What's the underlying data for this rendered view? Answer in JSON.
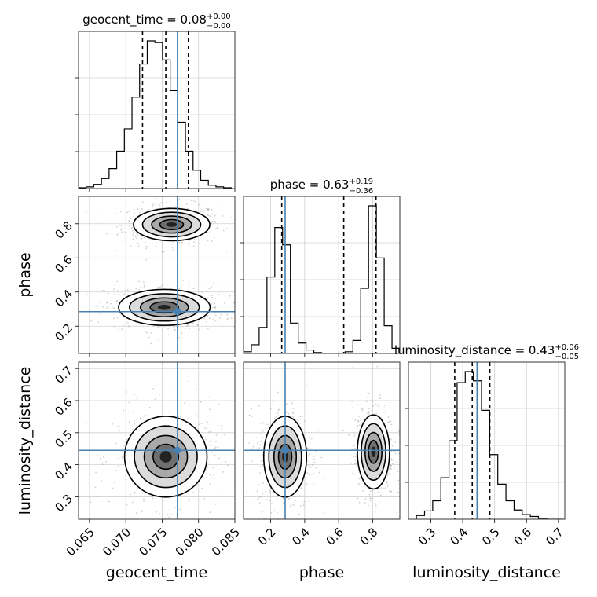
{
  "chart_data": {
    "type": "corner",
    "parameters": [
      "geocent_time",
      "phase",
      "luminosity_distance"
    ],
    "axis_labels": [
      "geocent_time",
      "phase",
      "luminosity_distance"
    ],
    "ranges": [
      [
        0.0635,
        0.085
      ],
      [
        0.04,
        0.96
      ],
      [
        0.23,
        0.72
      ]
    ],
    "ticks": {
      "geocent_time": {
        "values": [
          0.065,
          0.07,
          0.075,
          0.08,
          0.085
        ],
        "labels": [
          "0.065",
          "0.070",
          "0.075",
          "0.080",
          "0.085"
        ]
      },
      "phase": {
        "values": [
          0.2,
          0.4,
          0.6,
          0.8
        ],
        "labels": [
          "0.2",
          "0.4",
          "0.6",
          "0.8"
        ]
      },
      "luminosity_distance": {
        "values": [
          0.3,
          0.4,
          0.5,
          0.6,
          0.7
        ],
        "labels": [
          "0.3",
          "0.4",
          "0.5",
          "0.6",
          "0.7"
        ]
      }
    },
    "truths": {
      "geocent_time": 0.0771,
      "phase": 0.285,
      "luminosity_distance": 0.445
    },
    "truth_color": "#4682b4",
    "grid": true,
    "titles": [
      {
        "param": "geocent_time",
        "main": "geocent_time = 0.08",
        "sup": "+0.00",
        "sub": "−0.00"
      },
      {
        "param": "phase",
        "main": "phase = 0.63",
        "sup": "+0.19",
        "sub": "−0.36"
      },
      {
        "param": "luminosity_distance",
        "main": "luminosity_distance = 0.43",
        "sup": "+0.06",
        "sub": "−0.05"
      }
    ],
    "quantiles": {
      "geocent_time": [
        0.0723,
        0.0755,
        0.0786
      ],
      "phase": [
        0.265,
        0.63,
        0.82
      ],
      "luminosity_distance": [
        0.375,
        0.43,
        0.485
      ]
    },
    "histograms": {
      "geocent_time": {
        "edges": [
          0.0635,
          0.06455,
          0.0656,
          0.06665,
          0.0677,
          0.06875,
          0.0698,
          0.07085,
          0.0719,
          0.07295,
          0.074,
          0.07505,
          0.0761,
          0.07715,
          0.0782,
          0.07925,
          0.0803,
          0.08135,
          0.0824,
          0.08345,
          0.0845
        ],
        "counts": [
          1,
          2,
          5,
          12,
          24,
          45,
          72,
          110,
          150,
          178,
          176,
          155,
          118,
          80,
          45,
          22,
          10,
          4,
          2,
          1
        ]
      },
      "phase": {
        "edges": [
          0.04,
          0.086,
          0.132,
          0.178,
          0.224,
          0.27,
          0.316,
          0.362,
          0.408,
          0.454,
          0.5,
          0.546,
          0.592,
          0.638,
          0.684,
          0.73,
          0.776,
          0.822,
          0.868,
          0.914,
          0.96
        ],
        "counts": [
          2,
          10,
          30,
          88,
          145,
          125,
          35,
          12,
          4,
          1,
          0,
          0,
          0,
          2,
          15,
          75,
          170,
          110,
          32,
          6
        ]
      },
      "luminosity_distance": {
        "edges": [
          0.255,
          0.2805,
          0.306,
          0.3315,
          0.357,
          0.3825,
          0.408,
          0.4335,
          0.459,
          0.4845,
          0.51,
          0.5355,
          0.561,
          0.5865,
          0.612,
          0.6375,
          0.663,
          0.6885,
          0.714
        ],
        "counts": [
          4,
          9,
          20,
          45,
          85,
          148,
          160,
          150,
          118,
          70,
          38,
          20,
          10,
          5,
          3,
          1,
          0,
          0
        ]
      }
    },
    "density_2d": [
      {
        "x": "geocent_time",
        "y": "phase",
        "blobs": [
          {
            "cx": 0.0763,
            "cy": 0.795,
            "sx": 0.0025,
            "sy": 0.045
          },
          {
            "cx": 0.0753,
            "cy": 0.31,
            "sx": 0.003,
            "sy": 0.05
          }
        ]
      },
      {
        "x": "geocent_time",
        "y": "luminosity_distance",
        "blobs": [
          {
            "cx": 0.0755,
            "cy": 0.425,
            "sx": 0.0027,
            "sy": 0.06
          }
        ]
      },
      {
        "x": "phase",
        "y": "luminosity_distance",
        "blobs": [
          {
            "cx": 0.285,
            "cy": 0.425,
            "sx": 0.06,
            "sy": 0.06
          },
          {
            "cx": 0.805,
            "cy": 0.44,
            "sx": 0.045,
            "sy": 0.055
          }
        ]
      }
    ]
  }
}
